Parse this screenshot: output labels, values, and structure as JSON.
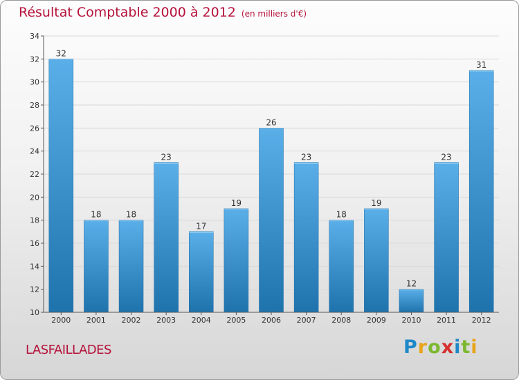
{
  "title": {
    "main": "Résultat Comptable 2000 à 2012",
    "unit": "(en milliers d'€)"
  },
  "location": "LASFAILLADES",
  "logo": {
    "letters": [
      "P",
      "r",
      "o",
      "x",
      "i",
      "t",
      "i"
    ],
    "colors": [
      "#1e88c8",
      "#e8a51a",
      "#7cb82f",
      "#d62f2f",
      "#1e88c8",
      "#7cb82f",
      "#e8a51a"
    ]
  },
  "colors": {
    "title": "#b5123a",
    "bar_light": "#5aafe9",
    "bar_dark": "#1f73ad",
    "grid": "#d9d9d9"
  },
  "chart_data": {
    "type": "bar",
    "title": "Résultat Comptable 2000 à 2012 (en milliers d'€)",
    "xlabel": "",
    "ylabel": "",
    "categories": [
      "2000",
      "2001",
      "2002",
      "2003",
      "2004",
      "2005",
      "2006",
      "2007",
      "2008",
      "2009",
      "2010",
      "2011",
      "2012"
    ],
    "values": [
      32,
      18,
      18,
      23,
      17,
      19,
      26,
      23,
      18,
      19,
      12,
      23,
      31
    ],
    "ylim": [
      10,
      34
    ],
    "yticks": [
      10,
      12,
      14,
      16,
      18,
      20,
      22,
      24,
      26,
      28,
      30,
      32,
      34
    ],
    "grid": true,
    "legend": "none"
  }
}
